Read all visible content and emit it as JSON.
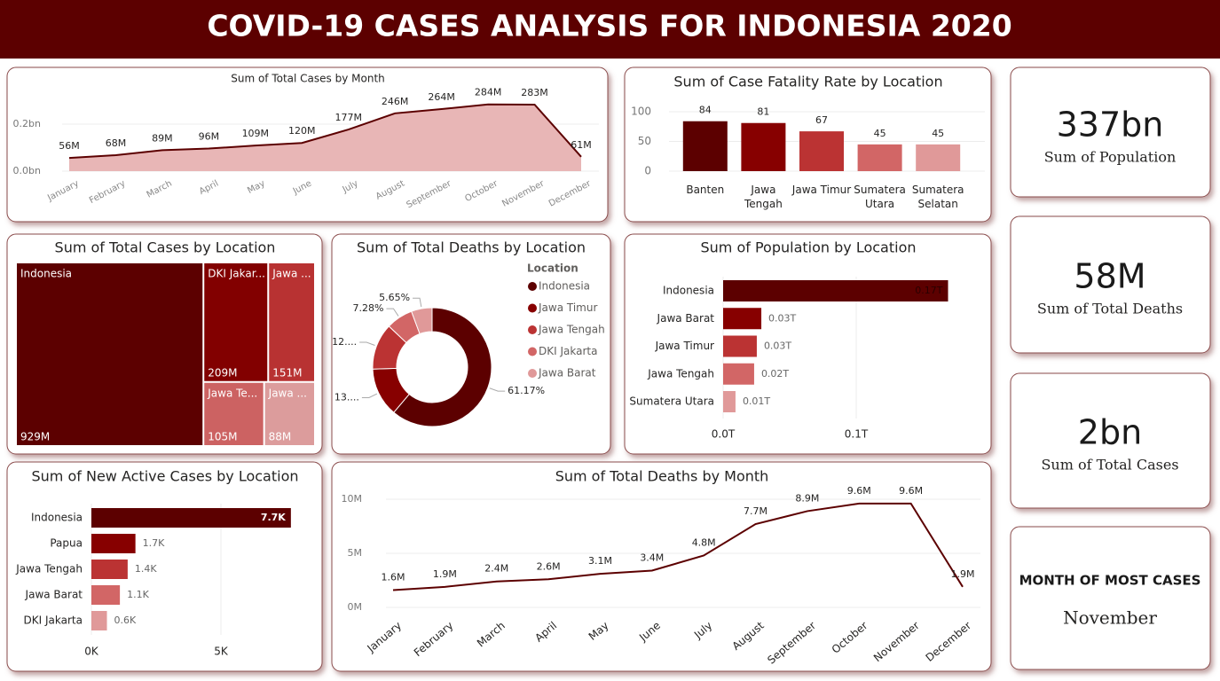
{
  "header": {
    "title": "COVID-19 CASES ANALYSIS FOR INDONESIA 2020"
  },
  "chart_data": [
    {
      "type": "area",
      "title": "Sum of Total Cases by Month",
      "categories": [
        "January",
        "February",
        "March",
        "April",
        "May",
        "June",
        "July",
        "August",
        "September",
        "October",
        "November",
        "December"
      ],
      "values": [
        56000000,
        68000000,
        89000000,
        96000000,
        109000000,
        120000000,
        177000000,
        246000000,
        264000000,
        284000000,
        283000000,
        61000000
      ],
      "value_labels": [
        "56M",
        "68M",
        "89M",
        "96M",
        "109M",
        "120M",
        "177M",
        "246M",
        "264M",
        "284M",
        "283M",
        "61M"
      ],
      "color": "#e8b6b6",
      "line_color": "#5c0000",
      "ylim": [
        0,
        300000000
      ],
      "yticks": [
        {
          "value": 0,
          "label": "0.0bn"
        },
        {
          "value": 200000000,
          "label": "0.2bn"
        }
      ],
      "grid": true
    },
    {
      "type": "bar",
      "title": "Sum of Case Fatality Rate by Location",
      "categories": [
        "Banten",
        "Jawa Tengah",
        "Jawa Timur",
        "Sumatera Utara",
        "Sumatera Selatan"
      ],
      "values": [
        84,
        81,
        67,
        45,
        45
      ],
      "colors": [
        "#5c0000",
        "#870000",
        "#bb3333",
        "#d26666",
        "#e09999"
      ],
      "ylim": [
        0,
        100
      ],
      "yticks": [
        0,
        50,
        100
      ],
      "grid": true
    },
    {
      "type": "treemap",
      "title": "Sum of Total Cases by Location",
      "categories": [
        "Indonesia",
        "DKI Jakar...",
        "Jawa ...",
        "Jawa Te...",
        "Jawa ..."
      ],
      "values": [
        929000000,
        209000000,
        151000000,
        105000000,
        88000000
      ],
      "value_labels": [
        "929M",
        "209M",
        "151M",
        "105M",
        "88M"
      ],
      "colors": [
        "#5c0000",
        "#820000",
        "#b83232",
        "#cc6262",
        "#dc9c9c"
      ]
    },
    {
      "type": "donut",
      "title": "Sum of Total Deaths by Location",
      "legend_title": "Location",
      "categories": [
        "Indonesia",
        "Jawa Timur",
        "Jawa Tengah",
        "DKI Jakarta",
        "Jawa Barat"
      ],
      "values": [
        61.17,
        13.3,
        12.6,
        7.28,
        5.65
      ],
      "value_labels": [
        "61.17%",
        "13....",
        "12....",
        "7.28%",
        "5.65%"
      ],
      "colors": [
        "#5c0000",
        "#870000",
        "#bb3333",
        "#d26666",
        "#e09999"
      ]
    },
    {
      "type": "hbar",
      "title": "Sum of Population by Location",
      "categories": [
        "Indonesia",
        "Jawa Barat",
        "Jawa Timur",
        "Jawa Tengah",
        "Sumatera Utara"
      ],
      "values": [
        0.169,
        0.0287,
        0.0253,
        0.0233,
        0.0093
      ],
      "value_labels": [
        "0.17T",
        "0.03T",
        "0.03T",
        "0.02T",
        "0.01T"
      ],
      "colors": [
        "#5c0000",
        "#870000",
        "#bb3333",
        "#d26666",
        "#e09999"
      ],
      "xlim": [
        0,
        0.18
      ],
      "xticks": [
        {
          "value": 0,
          "label": "0.0T"
        },
        {
          "value": 0.1,
          "label": "0.1T"
        }
      ],
      "grid": true
    },
    {
      "type": "hbar",
      "title": "Sum of New Active Cases by Location",
      "categories": [
        "Indonesia",
        "Papua",
        "Jawa Tengah",
        "Jawa Barat",
        "DKI Jakarta"
      ],
      "values": [
        7700,
        1700,
        1400,
        1100,
        600
      ],
      "value_labels": [
        "7.7K",
        "1.7K",
        "1.4K",
        "1.1K",
        "0.6K"
      ],
      "colors": [
        "#5c0000",
        "#870000",
        "#bb3333",
        "#d26666",
        "#e09999"
      ],
      "xlim": [
        0,
        8000
      ],
      "xticks": [
        {
          "value": 0,
          "label": "0K"
        },
        {
          "value": 5000,
          "label": "5K"
        }
      ],
      "grid": true
    },
    {
      "type": "line",
      "title": "Sum of Total Deaths by Month",
      "categories": [
        "January",
        "February",
        "March",
        "April",
        "May",
        "June",
        "July",
        "August",
        "September",
        "October",
        "November",
        "December"
      ],
      "values": [
        1600000,
        1900000,
        2400000,
        2600000,
        3100000,
        3400000,
        4800000,
        7700000,
        8900000,
        9600000,
        9600000,
        1900000
      ],
      "value_labels": [
        "1.6M",
        "1.9M",
        "2.4M",
        "2.6M",
        "3.1M",
        "3.4M",
        "4.8M",
        "7.7M",
        "8.9M",
        "9.6M",
        "9.6M",
        "1.9M"
      ],
      "color": "#5c0000",
      "ylim": [
        0,
        10000000
      ],
      "yticks": [
        {
          "value": 0,
          "label": "0M"
        },
        {
          "value": 5000000,
          "label": "5M"
        },
        {
          "value": 10000000,
          "label": "10M"
        }
      ],
      "grid": true
    }
  ],
  "cards": [
    {
      "value": "337bn",
      "label": "Sum of Population"
    },
    {
      "value": "58M",
      "label": "Sum of Total Deaths"
    },
    {
      "value": "2bn",
      "label": "Sum of Total Cases"
    },
    {
      "value": "November",
      "label": "MONTH OF MOST CASES"
    }
  ]
}
